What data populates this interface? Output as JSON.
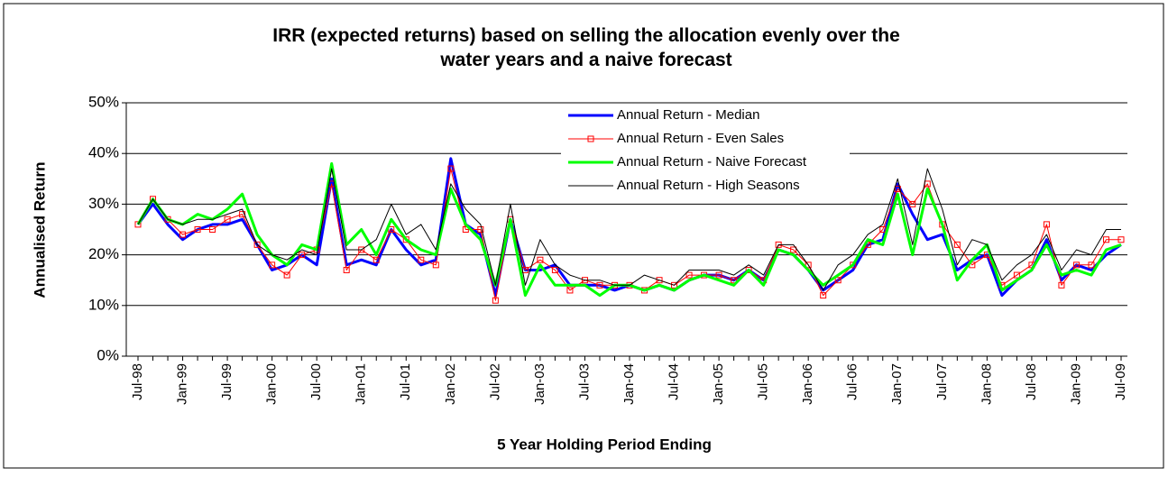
{
  "chart_data": {
    "type": "line",
    "title": "IRR (expected returns) based on selling the allocation evenly  over the water years and a naive forecast",
    "x_label": "5 Year Holding Period Ending",
    "y_label": "Annualised Return",
    "categories": [
      "Jul-98",
      null,
      null,
      "Jan-99",
      null,
      null,
      "Jul-99",
      null,
      null,
      "Jan-00",
      null,
      null,
      "Jul-00",
      null,
      null,
      "Jan-01",
      null,
      null,
      "Jul-01",
      null,
      null,
      "Jan-02",
      null,
      null,
      "Jul-02",
      null,
      null,
      "Jan-03",
      null,
      null,
      "Jul-03",
      null,
      null,
      "Jan-04",
      null,
      null,
      "Jul-04",
      null,
      null,
      "Jan-05",
      null,
      null,
      "Jul-05",
      null,
      null,
      "Jan-06",
      null,
      null,
      "Jul-06",
      null,
      null,
      "Jan-07",
      null,
      null,
      "Jul-07",
      null,
      null,
      "Jan-08",
      null,
      null,
      "Jul-08",
      null,
      null,
      "Jan-09",
      null,
      null,
      "Jul-09"
    ],
    "series": [
      {
        "name": "Annual Return - Median",
        "color": "#0000ff",
        "width": 3,
        "values": [
          26,
          30,
          26,
          23,
          25,
          26,
          26,
          27,
          22,
          17,
          18,
          20,
          18,
          35,
          18,
          19,
          18,
          25,
          21,
          18,
          19,
          39,
          26,
          24,
          12,
          27,
          17,
          17,
          18,
          14,
          14,
          14,
          13,
          14,
          13,
          14,
          13,
          15,
          16,
          16,
          15,
          17,
          15,
          21,
          20,
          17,
          13,
          15,
          17,
          22,
          23,
          34,
          28,
          23,
          24,
          17,
          19,
          20,
          12,
          15,
          17,
          23,
          15,
          18,
          17,
          20,
          22
        ]
      },
      {
        "name": "Annual Return - Even Sales",
        "color": "#ff0000",
        "width": 1,
        "marker": "square",
        "values": [
          26,
          31,
          27,
          24,
          25,
          25,
          27,
          28,
          22,
          18,
          16,
          20,
          21,
          34,
          17,
          21,
          19,
          25,
          23,
          19,
          18,
          37,
          25,
          25,
          11,
          27,
          17,
          19,
          17,
          13,
          15,
          14,
          14,
          14,
          13,
          15,
          14,
          16,
          16,
          16,
          15,
          17,
          15,
          22,
          21,
          18,
          12,
          15,
          18,
          22,
          25,
          33,
          30,
          34,
          26,
          22,
          18,
          20,
          14,
          16,
          18,
          26,
          14,
          18,
          18,
          23,
          23
        ]
      },
      {
        "name": "Annual Return - Naive Forecast",
        "color": "#00ff00",
        "width": 3,
        "values": [
          26,
          31,
          27,
          26,
          28,
          27,
          29,
          32,
          24,
          20,
          18,
          22,
          21,
          38,
          22,
          25,
          20,
          27,
          23,
          21,
          20,
          33,
          26,
          23,
          14,
          27,
          12,
          18,
          14,
          14,
          14,
          12,
          14,
          14,
          13,
          14,
          13,
          15,
          16,
          15,
          14,
          17,
          14,
          21,
          20,
          17,
          14,
          16,
          18,
          23,
          22,
          32,
          20,
          33,
          26,
          15,
          19,
          22,
          13,
          15,
          17,
          22,
          16,
          17,
          16,
          21,
          22
        ]
      },
      {
        "name": "Annual Return - High Seasons",
        "color": "#000000",
        "width": 1,
        "values": [
          26,
          31,
          27,
          26,
          27,
          27,
          28,
          29,
          22,
          20,
          19,
          21,
          20,
          37,
          21,
          21,
          23,
          30,
          24,
          26,
          21,
          34,
          29,
          26,
          14,
          30,
          14,
          23,
          18,
          16,
          15,
          15,
          14,
          14,
          16,
          15,
          14,
          17,
          17,
          17,
          16,
          18,
          16,
          22,
          22,
          18,
          13,
          18,
          20,
          24,
          26,
          35,
          22,
          37,
          29,
          18,
          23,
          22,
          15,
          18,
          20,
          24,
          17,
          21,
          20,
          25,
          25
        ]
      }
    ],
    "ylim": [
      0,
      50
    ],
    "yticks": [
      {
        "value": 0,
        "label": "0%"
      },
      {
        "value": 10,
        "label": "10%"
      },
      {
        "value": 20,
        "label": "20%"
      },
      {
        "value": 30,
        "label": "30%"
      },
      {
        "value": 40,
        "label": "40%"
      },
      {
        "value": 50,
        "label": "50%"
      }
    ],
    "grid": true,
    "legend": "top"
  }
}
